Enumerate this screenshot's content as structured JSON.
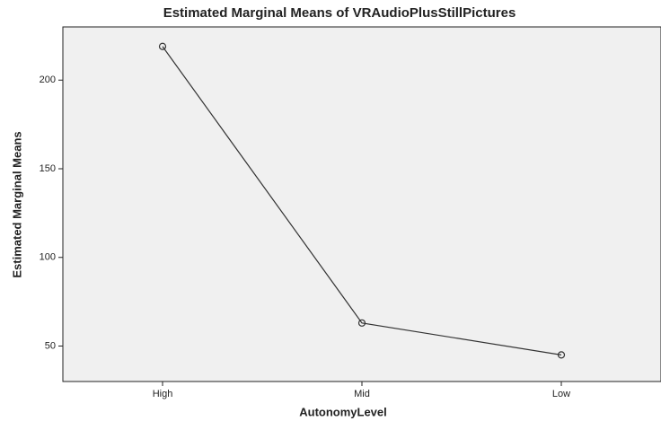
{
  "chart_data": {
    "type": "line",
    "title": "Estimated Marginal Means of VRAudioPlusStillPictures",
    "x_label": "AutonomyLevel",
    "y_label": "Estimated Marginal Means",
    "categories": [
      "High",
      "Mid",
      "Low"
    ],
    "values": [
      219,
      63,
      45
    ],
    "color": "#333333",
    "ylim": [
      30,
      230
    ],
    "yticks": [
      50,
      100,
      150,
      200
    ]
  }
}
